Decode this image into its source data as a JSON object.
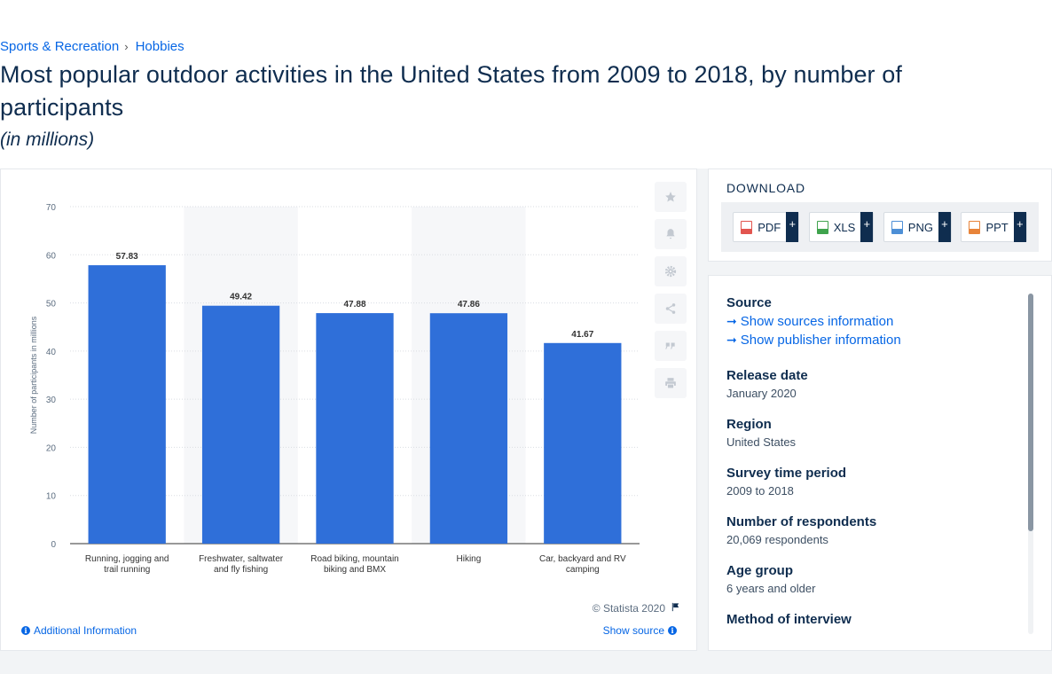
{
  "breadcrumb": {
    "items": [
      "Sports & Recreation",
      "Hobbies"
    ],
    "separator": "›"
  },
  "page": {
    "title": "Most popular outdoor activities in the United States from 2009 to 2018, by number of participants",
    "subtitle": "(in millions)"
  },
  "chart_data": {
    "type": "bar",
    "categories": [
      [
        "Running, jogging and",
        "trail running"
      ],
      [
        "Freshwater, saltwater",
        "and fly fishing"
      ],
      [
        "Road biking, mountain",
        "biking and BMX"
      ],
      [
        "Hiking"
      ],
      [
        "Car, backyard and RV",
        "camping"
      ]
    ],
    "values": [
      57.83,
      49.42,
      47.88,
      47.86,
      41.67
    ],
    "data_labels": [
      "57.83",
      "49.42",
      "47.88",
      "47.86",
      "41.67"
    ],
    "ylabel": "Number of participants in millions",
    "ylim": [
      0,
      70
    ],
    "yticks": [
      0,
      10,
      20,
      30,
      40,
      50,
      60,
      70
    ],
    "grid": true,
    "bar_color": "#2f6fd9",
    "stripe_color": "#f6f7f9"
  },
  "toolbar": {
    "icons": [
      "star-icon",
      "bell-icon",
      "gear-icon",
      "share-icon",
      "quote-icon",
      "print-icon"
    ]
  },
  "chart_footer": {
    "credit": "© Statista 2020",
    "additional_info": "Additional Information",
    "show_source": "Show source"
  },
  "download": {
    "title": "DOWNLOAD",
    "buttons": [
      {
        "label": "PDF",
        "plus": "+",
        "color": "#e2554f"
      },
      {
        "label": "XLS",
        "plus": "+",
        "color": "#3fa34d"
      },
      {
        "label": "PNG",
        "plus": "+",
        "color": "#4d8fd6"
      },
      {
        "label": "PPT",
        "plus": "+",
        "color": "#e8843a"
      }
    ]
  },
  "source": {
    "label": "Source",
    "links": [
      "Show sources information",
      "Show publisher information"
    ],
    "release_label": "Release date",
    "release_value": "January 2020",
    "region_label": "Region",
    "region_value": "United States",
    "period_label": "Survey time period",
    "period_value": "2009 to 2018",
    "respondents_label": "Number of respondents",
    "respondents_value": "20,069 respondents",
    "age_label": "Age group",
    "age_value": "6 years and older",
    "method_label": "Method of interview"
  },
  "colors": {
    "accent": "#0666e5",
    "text": "#0f2d4f"
  }
}
